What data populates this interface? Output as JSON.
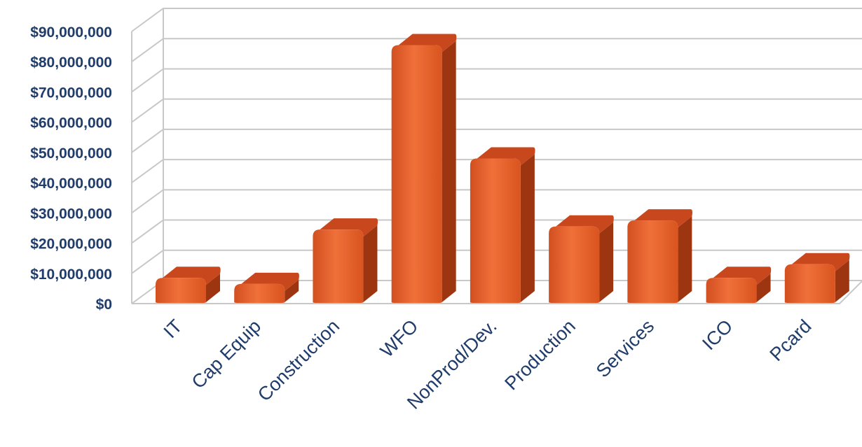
{
  "chart_data": {
    "type": "bar",
    "categories": [
      "IT",
      "Cap Equip",
      "Construction",
      "WFO",
      "NonProd/Dev.",
      "Production",
      "Services",
      "ICO",
      "Pcard"
    ],
    "values": [
      8500000,
      6500000,
      24500000,
      85500000,
      48000000,
      25500000,
      27500000,
      8500000,
      13000000
    ],
    "ylim": [
      0,
      90000000
    ],
    "yticks": [
      0,
      10000000,
      20000000,
      30000000,
      40000000,
      50000000,
      60000000,
      70000000,
      80000000,
      90000000
    ],
    "ytick_labels": [
      "$0",
      "$10,000,000",
      "$20,000,000",
      "$30,000,000",
      "$40,000,000",
      "$50,000,000",
      "$60,000,000",
      "$70,000,000",
      "$80,000,000",
      "$90,000,000"
    ],
    "grid": true,
    "legend": "none",
    "colors": {
      "bar_front": "#e05a2a",
      "bar_top": "#c8471c",
      "bar_side": "#9c3510",
      "tick_text": "#1f3c6b",
      "grid": "#c8c8c8"
    }
  }
}
